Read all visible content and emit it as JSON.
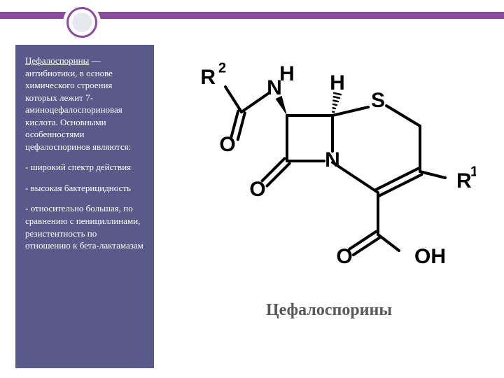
{
  "colors": {
    "accent": "#8a4a9e",
    "sidebar_bg": "#5a5a8a",
    "sidebar_text": "#ffffff",
    "caption_text": "#595959",
    "chem_stroke": "#000000",
    "slide_bg": "#ffffff"
  },
  "ornament": {
    "ring_border": "#8a4a9e",
    "inner_fill": "#e7e7ef"
  },
  "sidebar": {
    "term": "Цефалоспорины",
    "intro_rest": " — антибиотики, в основе химического строения которых лежит 7-аминоцефалоспориновая кислота. Основными особенностями цефалоспоринов являются:",
    "bullet1": "- широкий спектр действия",
    "bullet2": "- высокая бактерицидность",
    "bullet3": "- относительно большая, по сравнению с пенициллинами, резистентность по отношению к бета-лактамазам"
  },
  "caption": "Цефалоспорины",
  "chem": {
    "labels": {
      "R2": "R",
      "R2_sup": "2",
      "H_top_left": "H",
      "N_top": "N",
      "H_top_right": "H",
      "S": "S",
      "O_left": "O",
      "O_bottom_left": "O",
      "N_ring": "N",
      "R1": "R",
      "R1_sup": "1",
      "O_carboxyl": "O",
      "OH": "OH"
    },
    "style": {
      "stroke_width": 4,
      "font_size_label": 30,
      "font_size_sup": 20,
      "double_bond_gap": 5
    }
  }
}
